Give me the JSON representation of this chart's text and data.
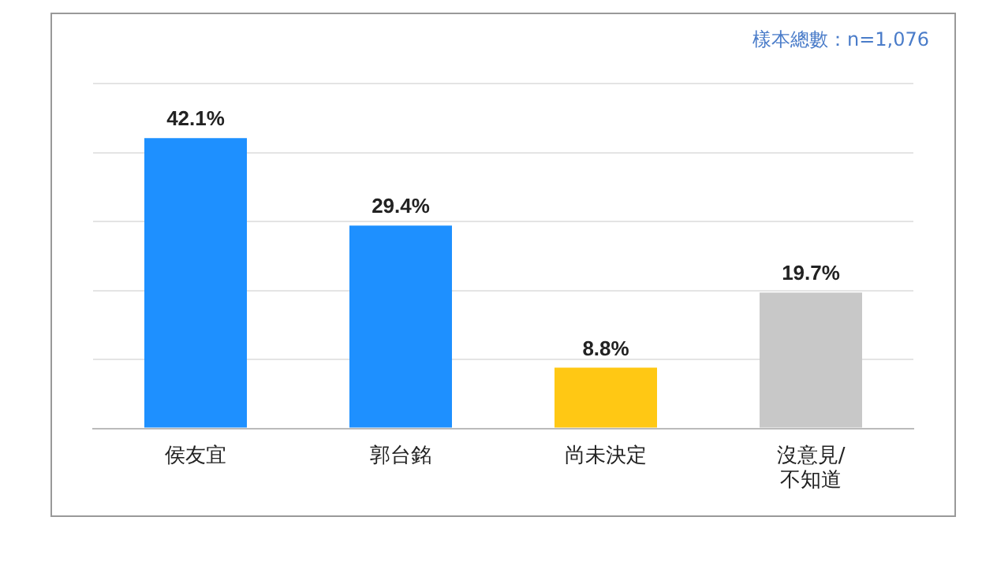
{
  "chart_data": {
    "type": "bar",
    "categories": [
      "侯友宜",
      "郭台銘",
      "尚未決定",
      "沒意見/不知道"
    ],
    "values": [
      42.1,
      29.4,
      8.8,
      19.7
    ],
    "colors": [
      "#1e90ff",
      "#1e90ff",
      "#ffc814",
      "#c8c8c8"
    ],
    "value_labels": [
      "42.1%",
      "29.4%",
      "8.8%",
      "19.7%"
    ],
    "ylim": [
      0,
      50
    ],
    "yticks": [
      {
        "value": 0,
        "label": null
      },
      {
        "value": 10,
        "label": null
      },
      {
        "value": 20,
        "label": null
      },
      {
        "value": 30,
        "label": null
      },
      {
        "value": 40,
        "label": null
      },
      {
        "value": 50,
        "label": null
      }
    ],
    "tick_labels": "x",
    "grid": "y",
    "legend": false,
    "annotations": [
      "樣本總數：n=1,076"
    ]
  }
}
